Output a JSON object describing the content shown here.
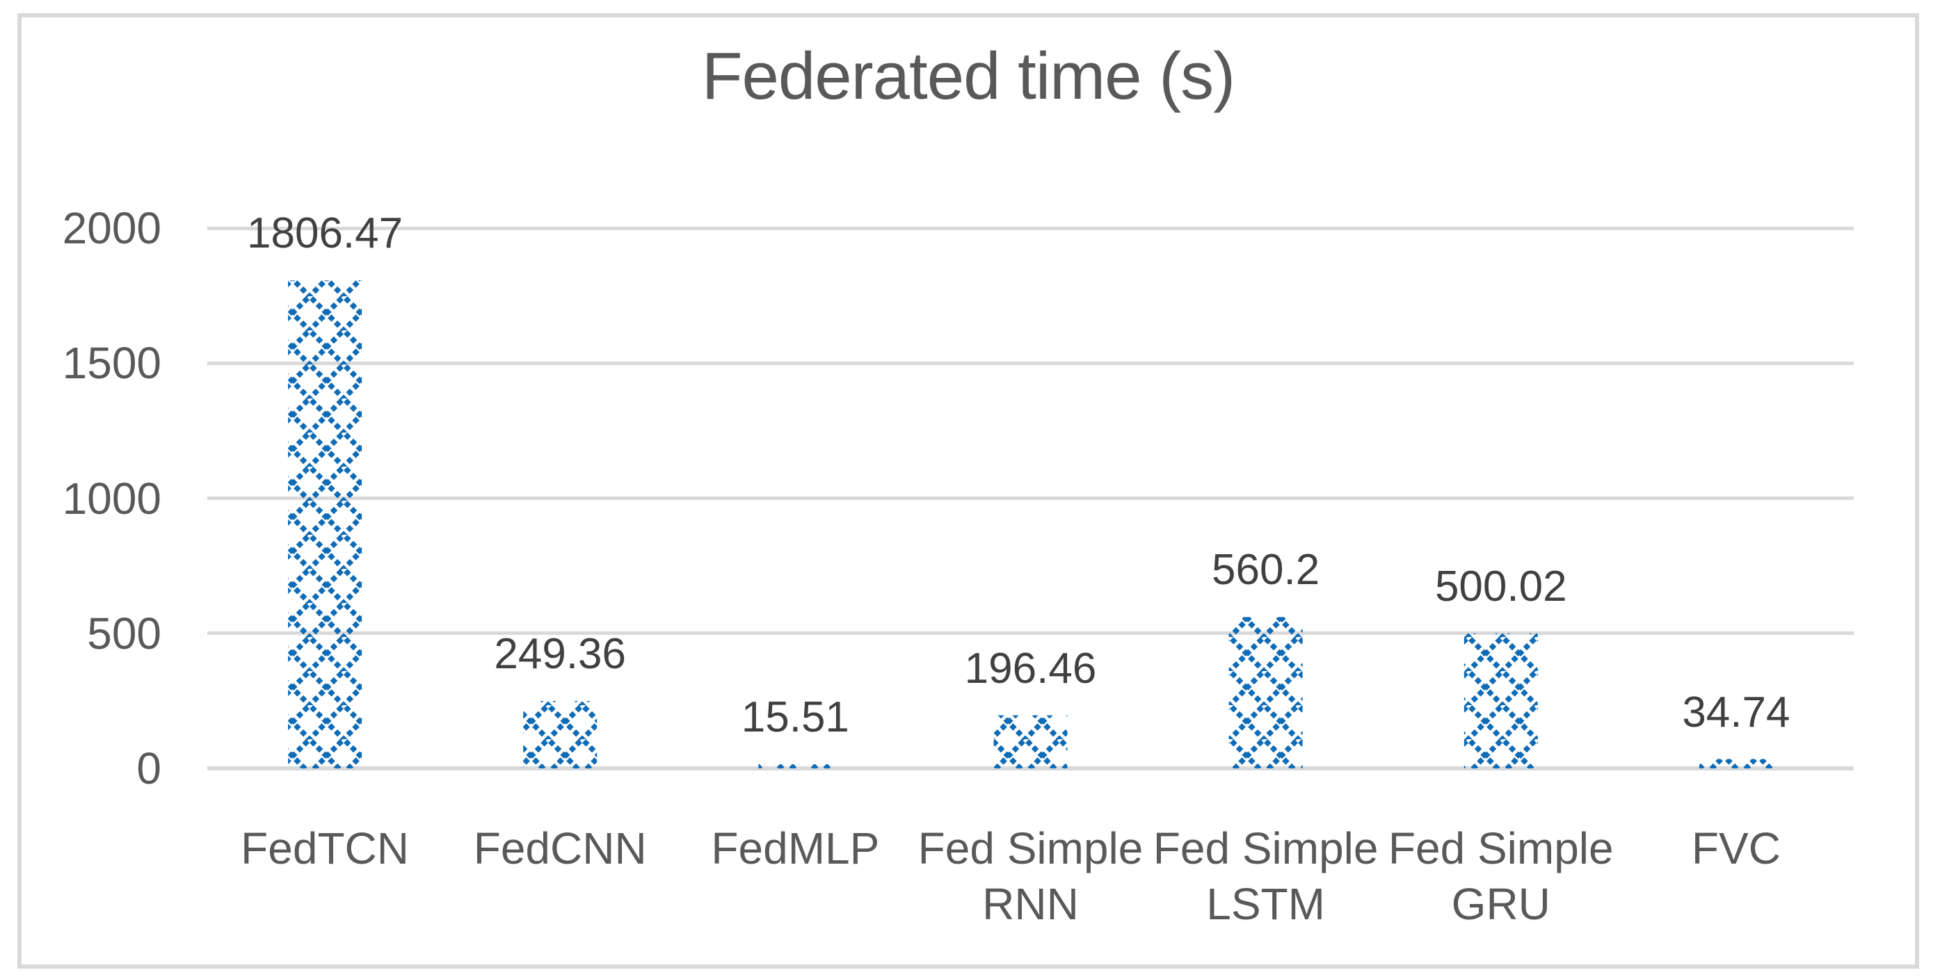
{
  "chart_data": {
    "type": "bar",
    "title": "Federated time (s)",
    "categories": [
      "FedTCN",
      "FedCNN",
      "FedMLP",
      "Fed Simple RNN",
      "Fed Simple LSTM",
      "Fed Simple GRU",
      "FVC"
    ],
    "values": [
      1806.47,
      249.36,
      15.51,
      196.46,
      560.2,
      500.02,
      34.74
    ],
    "data_labels": [
      "1806.47",
      "249.36",
      "15.51",
      "196.46",
      "560.2",
      "500.02",
      "34.74"
    ],
    "xlabel": "",
    "ylabel": "",
    "ylim": [
      0,
      2000
    ],
    "yticks": [
      0,
      500,
      1000,
      1500,
      2000
    ],
    "ytick_labels": [
      "0",
      "500",
      "1000",
      "1500",
      "2000"
    ],
    "grid": true,
    "legend_position": "none",
    "bar_fill_style": "dotted-diagonal-crosshatch-pattern",
    "colors": {
      "bar": "#0E6BB6",
      "gridline": "#D9D9D9",
      "axis_line": "#D9D9D9",
      "frame_border": "#D9D9D9",
      "title_text": "#595959",
      "axis_text": "#595959",
      "data_label_text": "#404040",
      "background": "#FFFFFF"
    }
  }
}
